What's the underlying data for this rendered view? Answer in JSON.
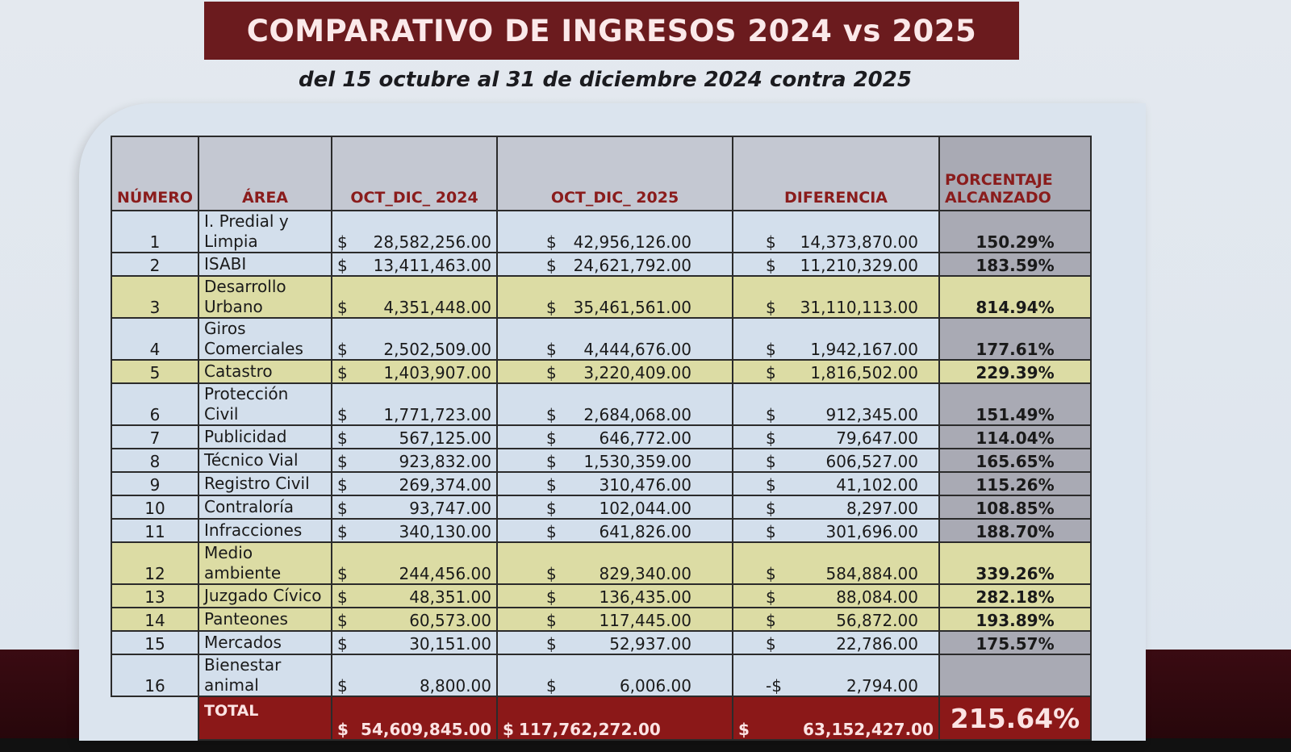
{
  "title": "COMPARATIVO DE INGRESOS 2024 vs 2025",
  "subtitle": "del 15 octubre al 31 de diciembre 2024 contra 2025",
  "colors": {
    "title_bg": "#6b1b1e",
    "header_text": "#8a1c1c",
    "highlight_row": "#dcdca4",
    "normal_row": "#d3dfec",
    "percent_col": "#a9aab4",
    "total_row": "#8b1818"
  },
  "table": {
    "headers": {
      "numero": "NÚMERO",
      "area": "ÁREA",
      "y2024": "OCT_DIC_ 2024",
      "y2025": "OCT_DIC_ 2025",
      "diferencia": "DIFERENCIA",
      "porcentaje_1": "PORCENTAJE",
      "porcentaje_2": "ALCANZADO"
    },
    "rows": [
      {
        "num": "1",
        "area_1": "I. Predial y",
        "area_2": "Limpia",
        "c24": "$",
        "v24": "28,582,256.00",
        "c25": "$",
        "v25": "42,956,126.00",
        "cd": "$",
        "vd": "14,373,870.00",
        "pct": "150.29%"
      },
      {
        "num": "2",
        "area_1": "ISABI",
        "area_2": "",
        "c24": "$",
        "v24": "13,411,463.00",
        "c25": "$",
        "v25": "24,621,792.00",
        "cd": "$",
        "vd": "11,210,329.00",
        "pct": "183.59%"
      },
      {
        "num": "3",
        "area_1": "Desarrollo",
        "area_2": "Urbano",
        "c24": "$",
        "v24": "4,351,448.00",
        "c25": "$",
        "v25": "35,461,561.00",
        "cd": "$",
        "vd": "31,110,113.00",
        "pct": "814.94%"
      },
      {
        "num": "4",
        "area_1": "Giros",
        "area_2": "Comerciales",
        "c24": "$",
        "v24": "2,502,509.00",
        "c25": "$",
        "v25": "4,444,676.00",
        "cd": "$",
        "vd": "1,942,167.00",
        "pct": "177.61%"
      },
      {
        "num": "5",
        "area_1": "Catastro",
        "area_2": "",
        "c24": "$",
        "v24": "1,403,907.00",
        "c25": "$",
        "v25": "3,220,409.00",
        "cd": "$",
        "vd": "1,816,502.00",
        "pct": "229.39%"
      },
      {
        "num": "6",
        "area_1": "Protección Civil",
        "area_2": "",
        "c24": "$",
        "v24": "1,771,723.00",
        "c25": "$",
        "v25": "2,684,068.00",
        "cd": "$",
        "vd": "912,345.00",
        "pct": "151.49%"
      },
      {
        "num": "7",
        "area_1": "Publicidad",
        "area_2": "",
        "c24": "$",
        "v24": "567,125.00",
        "c25": "$",
        "v25": "646,772.00",
        "cd": "$",
        "vd": "79,647.00",
        "pct": "114.04%"
      },
      {
        "num": "8",
        "area_1": "Técnico Vial",
        "area_2": "",
        "c24": "$",
        "v24": "923,832.00",
        "c25": "$",
        "v25": "1,530,359.00",
        "cd": "$",
        "vd": "606,527.00",
        "pct": "165.65%"
      },
      {
        "num": "9",
        "area_1": "Registro Civil",
        "area_2": "",
        "c24": "$",
        "v24": "269,374.00",
        "c25": "$",
        "v25": "310,476.00",
        "cd": "$",
        "vd": "41,102.00",
        "pct": "115.26%"
      },
      {
        "num": "10",
        "area_1": "Contraloría",
        "area_2": "",
        "c24": "$",
        "v24": "93,747.00",
        "c25": "$",
        "v25": "102,044.00",
        "cd": "$",
        "vd": "8,297.00",
        "pct": "108.85%"
      },
      {
        "num": "11",
        "area_1": "Infracciones",
        "area_2": "",
        "c24": "$",
        "v24": "340,130.00",
        "c25": "$",
        "v25": "641,826.00",
        "cd": "$",
        "vd": "301,696.00",
        "pct": "188.70%"
      },
      {
        "num": "12",
        "area_1": "Medio ambiente",
        "area_2": "",
        "c24": "$",
        "v24": "244,456.00",
        "c25": "$",
        "v25": "829,340.00",
        "cd": "$",
        "vd": "584,884.00",
        "pct": "339.26%"
      },
      {
        "num": "13",
        "area_1": "Juzgado Cívico",
        "area_2": "",
        "c24": "$",
        "v24": "48,351.00",
        "c25": "$",
        "v25": "136,435.00",
        "cd": "$",
        "vd": "88,084.00",
        "pct": "282.18%"
      },
      {
        "num": "14",
        "area_1": "Panteones",
        "area_2": "",
        "c24": "$",
        "v24": "60,573.00",
        "c25": "$",
        "v25": "117,445.00",
        "cd": "$",
        "vd": "56,872.00",
        "pct": "193.89%"
      },
      {
        "num": "15",
        "area_1": "Mercados",
        "area_2": "",
        "c24": "$",
        "v24": "30,151.00",
        "c25": "$",
        "v25": "52,937.00",
        "cd": "$",
        "vd": "22,786.00",
        "pct": "175.57%"
      },
      {
        "num": "16",
        "area_1": "Bienestar animal",
        "area_2": "",
        "c24": "$",
        "v24": "8,800.00",
        "c25": "$",
        "v25": "6,006.00",
        "cd": "-$",
        "vd": "2,794.00",
        "pct": ""
      }
    ],
    "total": {
      "label": "TOTAL",
      "c24": "$",
      "v24": "54,609,845.00",
      "c25": "$",
      "v25": "117,762,272.00",
      "cd": "$",
      "vd": "63,152,427.00",
      "pct": "215.64%"
    }
  }
}
